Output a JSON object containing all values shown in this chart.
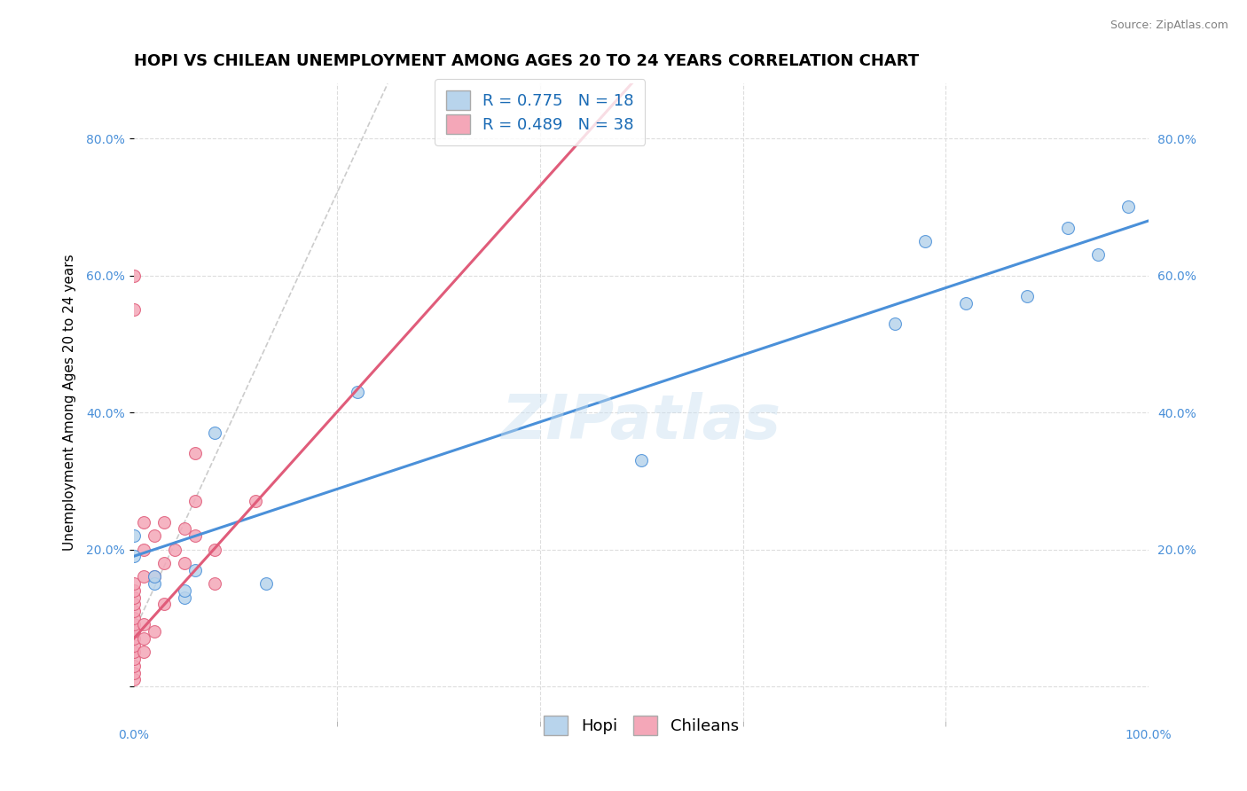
{
  "title": "HOPI VS CHILEAN UNEMPLOYMENT AMONG AGES 20 TO 24 YEARS CORRELATION CHART",
  "source": "Source: ZipAtlas.com",
  "ylabel": "Unemployment Among Ages 20 to 24 years",
  "watermark": "ZIPatlas",
  "hopi_R": 0.775,
  "hopi_N": 18,
  "chilean_R": 0.489,
  "chilean_N": 38,
  "hopi_color": "#b8d4ec",
  "hopi_line_color": "#4a90d9",
  "chilean_color": "#f4a7b8",
  "chilean_line_color": "#e05c7a",
  "dashed_line_color": "#cccccc",
  "background_color": "#ffffff",
  "grid_color": "#dddddd",
  "xlim": [
    0.0,
    1.0
  ],
  "ylim": [
    -0.05,
    0.88
  ],
  "yticks": [
    0.0,
    0.2,
    0.4,
    0.6,
    0.8
  ],
  "ytick_labels": [
    "",
    "20.0%",
    "40.0%",
    "60.0%",
    "80.0%"
  ],
  "hopi_x": [
    0.0,
    0.0,
    0.02,
    0.02,
    0.05,
    0.05,
    0.06,
    0.08,
    0.13,
    0.22,
    0.5,
    0.75,
    0.78,
    0.82,
    0.88,
    0.92,
    0.95,
    0.98
  ],
  "hopi_y": [
    0.19,
    0.22,
    0.15,
    0.16,
    0.13,
    0.14,
    0.17,
    0.37,
    0.15,
    0.43,
    0.33,
    0.53,
    0.65,
    0.56,
    0.57,
    0.67,
    0.63,
    0.7
  ],
  "chilean_x": [
    0.0,
    0.0,
    0.0,
    0.0,
    0.0,
    0.0,
    0.0,
    0.0,
    0.0,
    0.0,
    0.0,
    0.0,
    0.0,
    0.0,
    0.0,
    0.0,
    0.0,
    0.01,
    0.01,
    0.01,
    0.01,
    0.01,
    0.01,
    0.02,
    0.02,
    0.02,
    0.03,
    0.03,
    0.03,
    0.04,
    0.05,
    0.05,
    0.06,
    0.06,
    0.06,
    0.08,
    0.08,
    0.12
  ],
  "chilean_y": [
    0.01,
    0.02,
    0.03,
    0.04,
    0.05,
    0.06,
    0.07,
    0.08,
    0.09,
    0.1,
    0.11,
    0.12,
    0.13,
    0.14,
    0.15,
    0.55,
    0.6,
    0.05,
    0.07,
    0.09,
    0.16,
    0.2,
    0.24,
    0.08,
    0.16,
    0.22,
    0.12,
    0.18,
    0.24,
    0.2,
    0.18,
    0.23,
    0.22,
    0.27,
    0.34,
    0.15,
    0.2,
    0.27
  ],
  "title_fontsize": 13,
  "axis_fontsize": 11,
  "tick_fontsize": 10,
  "legend_fontsize": 13
}
